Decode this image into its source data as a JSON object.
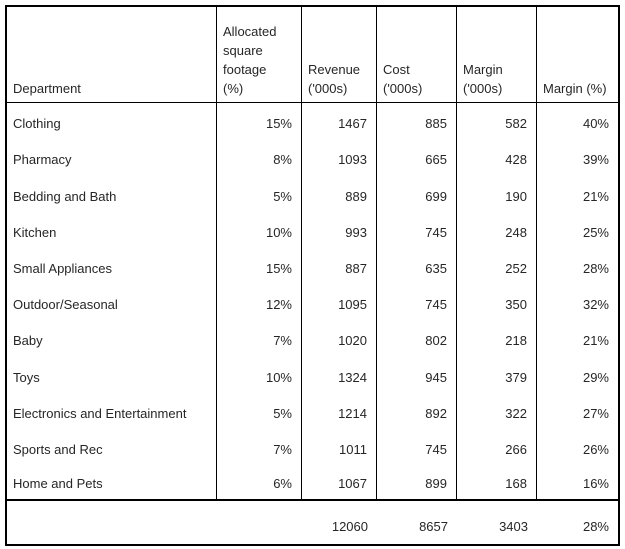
{
  "chart_data": {
    "type": "table",
    "columns": [
      {
        "id": "department",
        "lines": [
          "Department"
        ]
      },
      {
        "id": "allocated_sqft_pct",
        "lines": [
          "Allocated",
          "square",
          "footage",
          "(%)"
        ]
      },
      {
        "id": "revenue_000s",
        "lines": [
          "Revenue",
          "('000s)"
        ]
      },
      {
        "id": "cost_000s",
        "lines": [
          "Cost",
          "('000s)"
        ]
      },
      {
        "id": "margin_000s",
        "lines": [
          "Margin",
          "('000s)"
        ]
      },
      {
        "id": "margin_pct",
        "lines": [
          "Margin (%)"
        ]
      }
    ],
    "rows": [
      {
        "department": "Clothing",
        "sqft": "15%",
        "revenue": "1467",
        "cost": "885",
        "margin": "582",
        "margin_pct": "40%"
      },
      {
        "department": "Pharmacy",
        "sqft": "8%",
        "revenue": "1093",
        "cost": "665",
        "margin": "428",
        "margin_pct": "39%"
      },
      {
        "department": "Bedding and Bath",
        "sqft": "5%",
        "revenue": "889",
        "cost": "699",
        "margin": "190",
        "margin_pct": "21%"
      },
      {
        "department": "Kitchen",
        "sqft": "10%",
        "revenue": "993",
        "cost": "745",
        "margin": "248",
        "margin_pct": "25%"
      },
      {
        "department": "Small Appliances",
        "sqft": "15%",
        "revenue": "887",
        "cost": "635",
        "margin": "252",
        "margin_pct": "28%"
      },
      {
        "department": "Outdoor/Seasonal",
        "sqft": "12%",
        "revenue": "1095",
        "cost": "745",
        "margin": "350",
        "margin_pct": "32%"
      },
      {
        "department": "Baby",
        "sqft": "7%",
        "revenue": "1020",
        "cost": "802",
        "margin": "218",
        "margin_pct": "21%"
      },
      {
        "department": "Toys",
        "sqft": "10%",
        "revenue": "1324",
        "cost": "945",
        "margin": "379",
        "margin_pct": "29%"
      },
      {
        "department": "Electronics and Entertainment",
        "sqft": "5%",
        "revenue": "1214",
        "cost": "892",
        "margin": "322",
        "margin_pct": "27%"
      },
      {
        "department": "Sports and Rec",
        "sqft": "7%",
        "revenue": "1011",
        "cost": "745",
        "margin": "266",
        "margin_pct": "26%"
      },
      {
        "department": "Home and Pets",
        "sqft": "6%",
        "revenue": "1067",
        "cost": "899",
        "margin": "168",
        "margin_pct": "16%"
      }
    ],
    "totals": {
      "revenue": "12060",
      "cost": "8657",
      "margin": "3403",
      "margin_pct": "28%"
    },
    "layout": {
      "grid": "outer border, column dividers, header separator, thick rule above totals; no row dividers between data rows"
    }
  },
  "colors": {
    "border": "#000000",
    "text": "#262626",
    "background": "#ffffff"
  }
}
